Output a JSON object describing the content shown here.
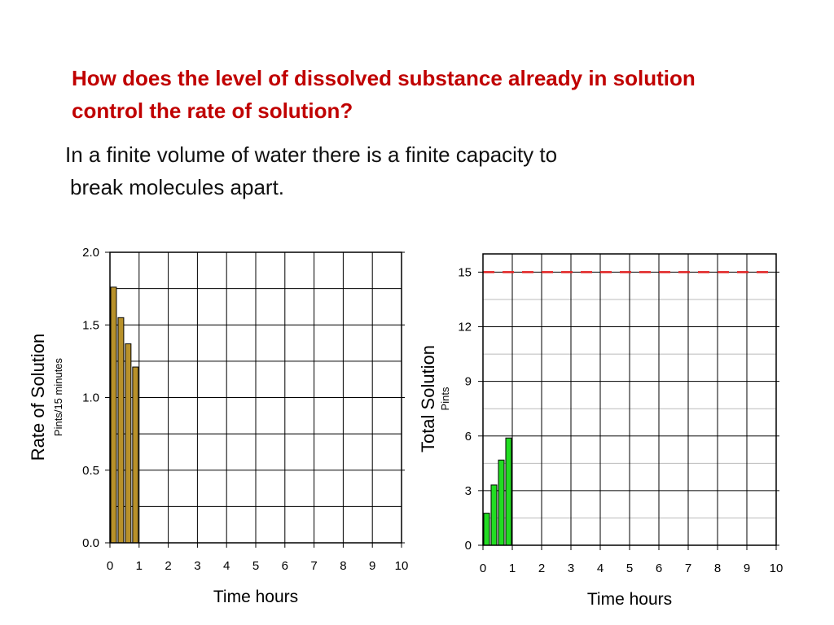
{
  "slide": {
    "heading_line1": "How does the level of dissolved substance already in solution",
    "heading_line2": "control the rate of solution?",
    "body_line1": "In a finite volume of water there is a finite capacity to",
    "body_line2": "break molecules apart."
  },
  "chart_data": [
    {
      "type": "bar",
      "id": "rate",
      "ylabel": "Rate of Solution",
      "ylabel_sub": "Pints/15 minutes",
      "xlabel": "Time hours",
      "xlim": [
        0,
        10
      ],
      "ylim": [
        0,
        2.0
      ],
      "yticks": [
        "0.0",
        "0.5",
        "1.0",
        "1.5",
        "2.0"
      ],
      "ytick_values": [
        0,
        0.5,
        1.0,
        1.5,
        2.0
      ],
      "xticks": [
        "0",
        "1",
        "2",
        "3",
        "4",
        "5",
        "6",
        "7",
        "8",
        "9",
        "10"
      ],
      "bar_width": 0.25,
      "x": [
        0,
        0.25,
        0.5,
        0.75
      ],
      "values": [
        1.76,
        1.55,
        1.37,
        1.21
      ],
      "bar_color": "#b8912a",
      "grid": true
    },
    {
      "type": "bar",
      "id": "total",
      "ylabel": "Total Solution",
      "ylabel_sub": "Pints",
      "xlabel": "Time hours",
      "xlim": [
        0,
        10
      ],
      "ylim": [
        0,
        16
      ],
      "yticks": [
        "0",
        "3",
        "6",
        "9",
        "12",
        "15"
      ],
      "ytick_values": [
        0,
        3,
        6,
        9,
        12,
        15
      ],
      "xticks": [
        "0",
        "1",
        "2",
        "3",
        "4",
        "5",
        "6",
        "7",
        "8",
        "9",
        "10"
      ],
      "bar_width": 0.25,
      "x": [
        0,
        0.25,
        0.5,
        0.75
      ],
      "values": [
        1.76,
        3.31,
        4.68,
        5.89
      ],
      "bar_color": "#22dd22",
      "capacity_line": 15,
      "capacity_color": "#e02020",
      "grid": true
    }
  ]
}
